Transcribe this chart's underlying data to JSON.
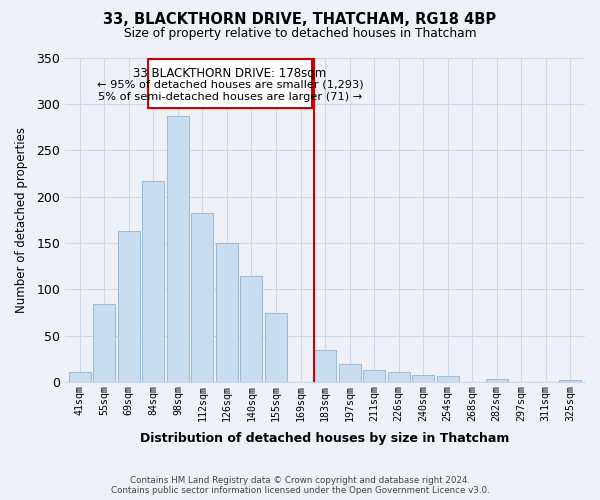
{
  "title": "33, BLACKTHORN DRIVE, THATCHAM, RG18 4BP",
  "subtitle": "Size of property relative to detached houses in Thatcham",
  "xlabel": "Distribution of detached houses by size in Thatcham",
  "ylabel": "Number of detached properties",
  "bar_labels": [
    "41sqm",
    "55sqm",
    "69sqm",
    "84sqm",
    "98sqm",
    "112sqm",
    "126sqm",
    "140sqm",
    "155sqm",
    "169sqm",
    "183sqm",
    "197sqm",
    "211sqm",
    "226sqm",
    "240sqm",
    "254sqm",
    "268sqm",
    "282sqm",
    "297sqm",
    "311sqm",
    "325sqm"
  ],
  "bar_values": [
    11,
    84,
    163,
    217,
    287,
    182,
    150,
    114,
    75,
    0,
    35,
    19,
    13,
    11,
    8,
    7,
    0,
    3,
    0,
    0,
    2
  ],
  "bar_color": "#c8ddf0",
  "bar_edge_color": "#a0bcd8",
  "property_line_color": "#cc0000",
  "annotation_title": "33 BLACKTHORN DRIVE: 178sqm",
  "annotation_line1": "← 95% of detached houses are smaller (1,293)",
  "annotation_line2": "5% of semi-detached houses are larger (71) →",
  "annotation_box_color": "#ffffff",
  "annotation_box_edge": "#cc0000",
  "ylim": [
    0,
    350
  ],
  "yticks": [
    0,
    50,
    100,
    150,
    200,
    250,
    300,
    350
  ],
  "footer_line1": "Contains HM Land Registry data © Crown copyright and database right 2024.",
  "footer_line2": "Contains public sector information licensed under the Open Government Licence v3.0.",
  "bg_color": "#eef2f8",
  "grid_color": "#d0d8e8"
}
